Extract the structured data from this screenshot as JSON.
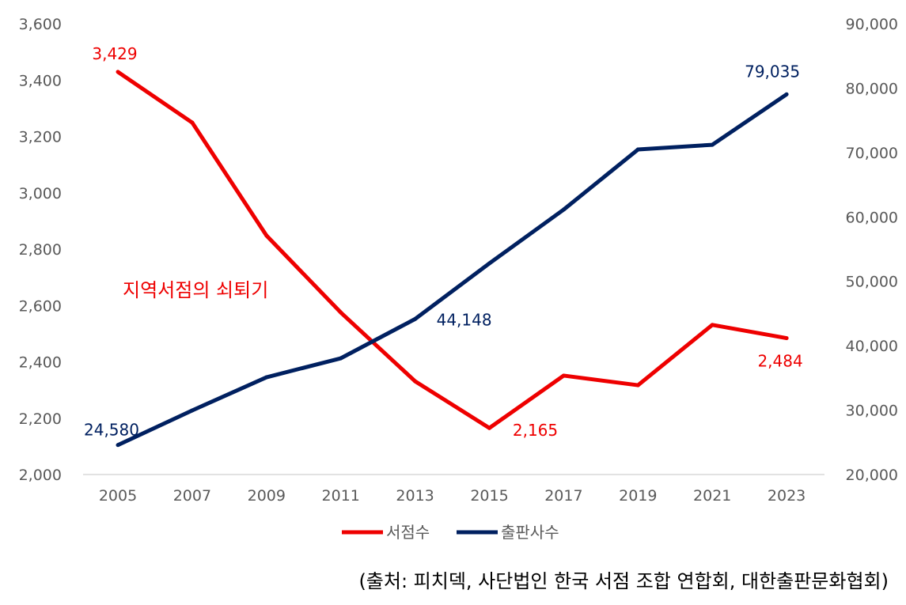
{
  "chart_data": {
    "type": "line",
    "categories": [
      "2005",
      "2007",
      "2009",
      "2011",
      "2013",
      "2015",
      "2017",
      "2019",
      "2021",
      "2023"
    ],
    "y_left": {
      "lim": [
        2000,
        3600
      ],
      "ticks": [
        "2,000",
        "2,200",
        "2,400",
        "2,600",
        "2,800",
        "3,000",
        "3,200",
        "3,400",
        "3,600"
      ],
      "tick_values": [
        2000,
        2200,
        2400,
        2600,
        2800,
        3000,
        3200,
        3400,
        3600
      ]
    },
    "y_right": {
      "lim": [
        20000,
        90000
      ],
      "ticks": [
        "20,000",
        "30,000",
        "40,000",
        "50,000",
        "60,000",
        "70,000",
        "80,000",
        "90,000"
      ],
      "tick_values": [
        20000,
        30000,
        40000,
        50000,
        60000,
        70000,
        80000,
        90000
      ]
    },
    "series": [
      {
        "name": "서점수",
        "axis": "left",
        "color": "#EE0000",
        "values": [
          3429,
          3249,
          2848,
          2575,
          2331,
          2165,
          2351,
          2317,
          2531,
          2484
        ],
        "labels": [
          {
            "index": 0,
            "text": "3,429"
          },
          {
            "index": 5,
            "text": "2,165"
          },
          {
            "index": 9,
            "text": "2,484"
          }
        ]
      },
      {
        "name": "출판사수",
        "axis": "right",
        "color": "#002060",
        "values": [
          24580,
          29950,
          35100,
          38050,
          44148,
          52790,
          61140,
          70470,
          71200,
          79035
        ],
        "labels": [
          {
            "index": 0,
            "text": "24,580"
          },
          {
            "index": 4,
            "text": "44,148"
          },
          {
            "index": 9,
            "text": "79,035"
          }
        ]
      }
    ],
    "annotation": "지역서점의 쇠퇴기",
    "legend": "bottom",
    "grid": false
  },
  "source": "(출처: 피치덱, 사단법인 한국 서점 조합 연합회, 대한출판문화협회)"
}
